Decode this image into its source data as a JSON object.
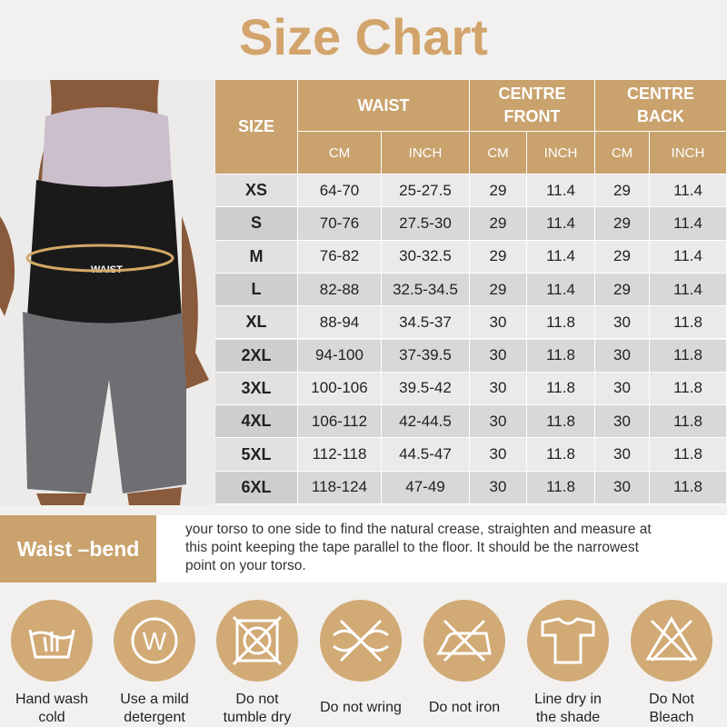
{
  "title": "Size Chart",
  "photo": {
    "label": "WAIST"
  },
  "table": {
    "size_header": "SIZE",
    "groups": [
      "WAIST",
      "CENTRE FRONT",
      "CENTRE BACK"
    ],
    "units": [
      "CM",
      "INCH",
      "CM",
      "INCH",
      "CM",
      "INCH"
    ],
    "rows": [
      [
        "XS",
        "64-70",
        "25-27.5",
        29,
        11.4,
        29,
        11.4
      ],
      [
        "S",
        "70-76",
        "27.5-30",
        29,
        11.4,
        29,
        11.4
      ],
      [
        "M",
        "76-82",
        "30-32.5",
        29,
        11.4,
        29,
        11.4
      ],
      [
        "L",
        "82-88",
        "32.5-34.5",
        29,
        11.4,
        29,
        11.4
      ],
      [
        "XL",
        "88-94",
        "34.5-37",
        30,
        11.8,
        30,
        11.8
      ],
      [
        "2XL",
        "94-100",
        "37-39.5",
        30,
        11.8,
        30,
        11.8
      ],
      [
        "3XL",
        "100-106",
        "39.5-42",
        30,
        11.8,
        30,
        11.8
      ],
      [
        "4XL",
        "106-112",
        "42-44.5",
        30,
        11.8,
        30,
        11.8
      ],
      [
        "5XL",
        "112-118",
        "44.5-47",
        30,
        11.8,
        30,
        11.8
      ],
      [
        "6XL",
        "118-124",
        "47-49",
        30,
        11.8,
        30,
        11.8
      ]
    ]
  },
  "waist_bend": {
    "label": "Waist –bend",
    "text": [
      "your torso to one side to find the natural crease, straighten and measure at",
      "this point keeping the tape parallel to the floor. It should be the narrowest",
      "point on your torso."
    ]
  },
  "care": [
    [
      "Hand wash",
      "cold"
    ],
    [
      "Use a mild",
      "detergent"
    ],
    [
      "Do not",
      "tumble dry"
    ],
    [
      "Do not wring"
    ],
    [
      "Do not iron"
    ],
    [
      "Line dry in",
      "the shade"
    ],
    [
      "Do Not",
      "Bleach"
    ]
  ]
}
